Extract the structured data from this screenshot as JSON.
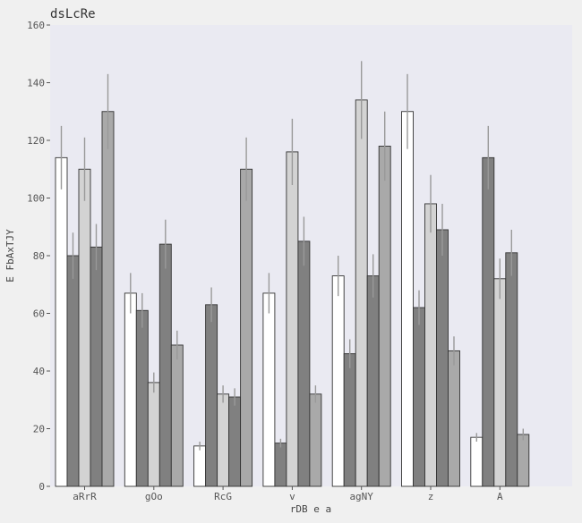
{
  "chart_data": {
    "type": "bar",
    "title": "dsLcRe",
    "xlabel": "rDB e a",
    "ylabel": "E FbAxTJY",
    "categories": [
      "aRrR",
      "gOo",
      "RcG",
      "v",
      "agNY",
      "z",
      "A"
    ],
    "ylim": [
      0,
      160
    ],
    "yticks": [
      0,
      20,
      40,
      60,
      80,
      100,
      120,
      140,
      160
    ],
    "grid": false,
    "legend": "none",
    "series": [
      {
        "color": "#ffffff",
        "values": [
          114,
          67,
          14,
          67,
          73,
          130,
          17
        ],
        "errors": [
          11,
          7,
          1.5,
          7,
          7,
          13,
          1.5
        ]
      },
      {
        "color": "#808080",
        "values": [
          80,
          61,
          63,
          15,
          46,
          62,
          114
        ],
        "errors": [
          8,
          6,
          6,
          1.5,
          5,
          6,
          11
        ]
      },
      {
        "color": "#d3d3d3",
        "values": [
          110,
          36,
          32,
          116,
          134,
          98,
          72
        ],
        "errors": [
          11,
          3.5,
          3,
          11.5,
          13.5,
          10,
          7
        ]
      },
      {
        "color": "#808080",
        "values": [
          83,
          84,
          31,
          85,
          73,
          89,
          81
        ],
        "errors": [
          8,
          8.5,
          3,
          8.5,
          7.5,
          9,
          8
        ]
      },
      {
        "color": "#a9a9a9",
        "values": [
          130,
          49,
          110,
          32,
          118,
          47,
          18
        ],
        "errors": [
          13,
          5,
          11,
          3,
          12,
          5,
          2
        ]
      }
    ]
  }
}
